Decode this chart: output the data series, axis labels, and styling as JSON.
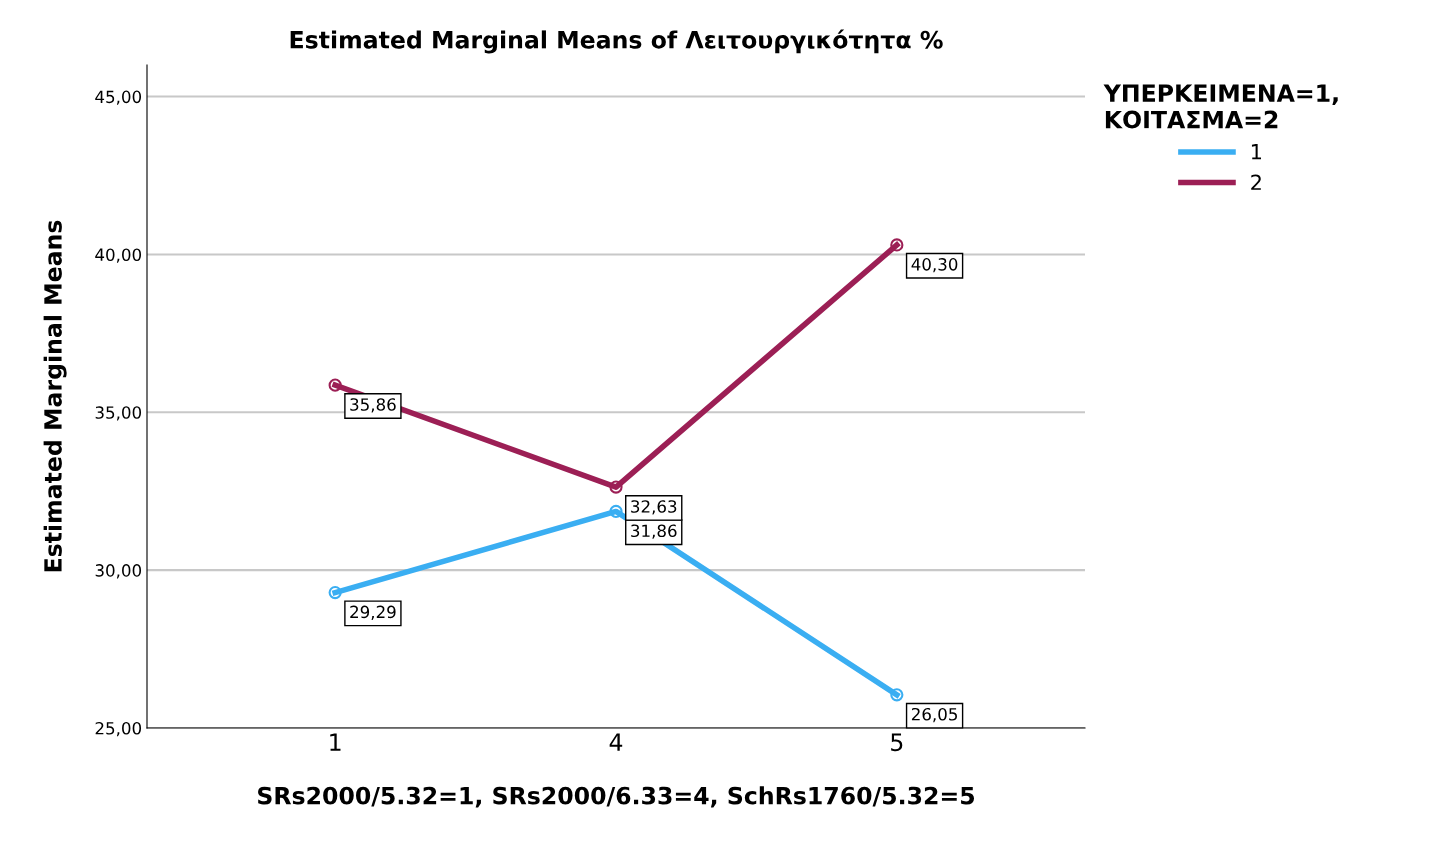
{
  "chart_data": {
    "type": "line",
    "title": "Estimated Marginal Means of Λειτουργικότητα %",
    "xlabel": "SRs2000/5.32=1, SRs2000/6.33=4, SchRs1760/5.32=5",
    "ylabel": "Estimated Marginal Means",
    "legend_title": "ΥΠΕΡΚΕΙΜΕΝΑ=1,\nΚΟΙΤΑΣΜΑ=2",
    "categories": [
      "1",
      "4",
      "5"
    ],
    "series": [
      {
        "name": "1",
        "color": "#3aaef2",
        "values": [
          29.29,
          31.86,
          26.05
        ],
        "value_labels": [
          "29,29",
          "31,86",
          "26,05"
        ]
      },
      {
        "name": "2",
        "color": "#9c1f55",
        "values": [
          35.86,
          32.63,
          40.3
        ],
        "value_labels": [
          "35,86",
          "32,63",
          "40,30"
        ]
      }
    ],
    "ylim": [
      25,
      46
    ],
    "yticks": [
      {
        "value": 25,
        "label": "25,00"
      },
      {
        "value": 30,
        "label": "30,00"
      },
      {
        "value": 35,
        "label": "35,00"
      },
      {
        "value": 40,
        "label": "40,00"
      },
      {
        "value": 45,
        "label": "45,00"
      }
    ],
    "grid": "y",
    "legend": "right",
    "marker": "circle"
  }
}
